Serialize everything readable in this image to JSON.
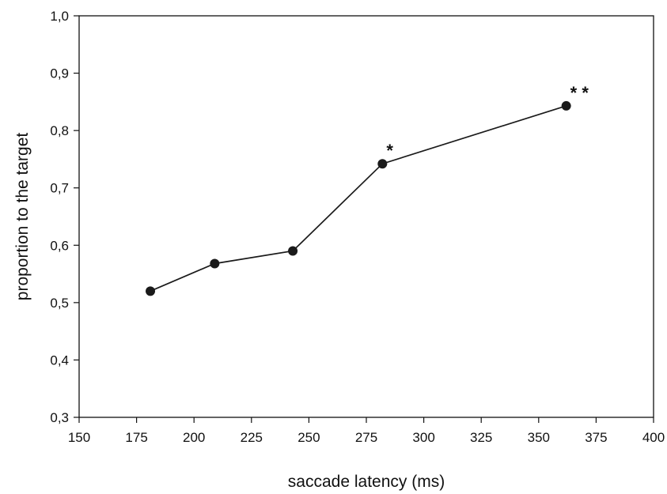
{
  "chart_data": {
    "type": "line",
    "title": "",
    "xlabel": "saccade latency (ms)",
    "ylabel": "proportion to the target",
    "xlim": [
      150,
      400
    ],
    "ylim": [
      0.3,
      1.0
    ],
    "x_ticks": [
      150,
      175,
      200,
      225,
      250,
      275,
      300,
      325,
      350,
      375,
      400
    ],
    "x_tick_labels": [
      "150",
      "175",
      "200",
      "225",
      "250",
      "275",
      "300",
      "325",
      "350",
      "375",
      "400"
    ],
    "y_ticks": [
      0.3,
      0.4,
      0.5,
      0.6,
      0.7,
      0.8,
      0.9,
      1.0
    ],
    "y_tick_labels": [
      "0,3",
      "0,4",
      "0,5",
      "0,6",
      "0,7",
      "0,8",
      "0,9",
      "1,0"
    ],
    "grid": false,
    "legend": "none",
    "series": [
      {
        "x": [
          181,
          209,
          243,
          282,
          362
        ],
        "y": [
          0.52,
          0.568,
          0.59,
          0.742,
          0.843
        ],
        "marker": "filled-circle",
        "color": "#1a1a1a"
      }
    ],
    "annotations": [
      {
        "text": "*",
        "x": 282,
        "y": 0.742
      },
      {
        "text": "* *",
        "x": 362,
        "y": 0.843
      }
    ]
  }
}
